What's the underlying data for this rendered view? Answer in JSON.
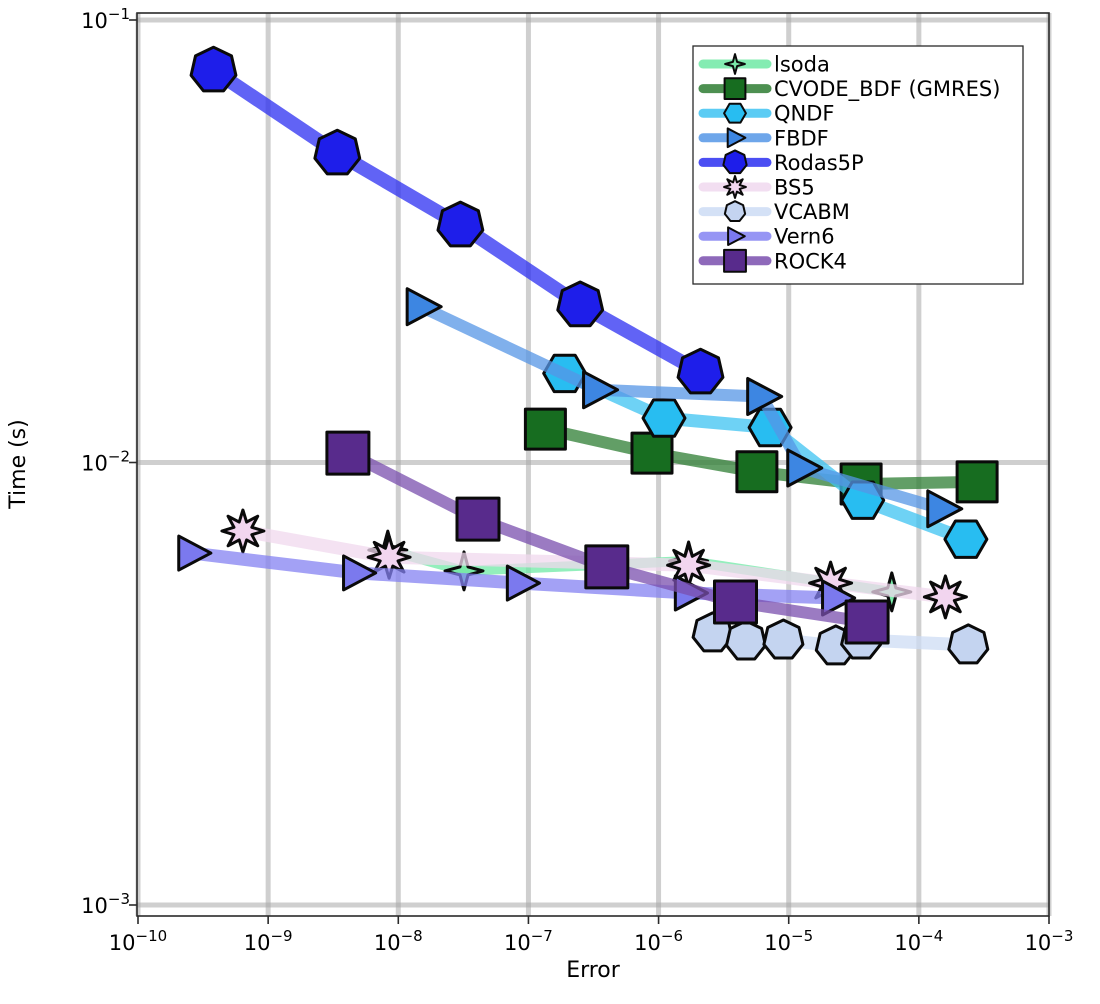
{
  "figure": {
    "background": "#ffffff"
  },
  "chart_data": {
    "type": "line",
    "title": "",
    "xlabel": "Error",
    "ylabel": "Time (s)",
    "x_scale": "log",
    "y_scale": "log",
    "xlim": [
      1e-10,
      0.001
    ],
    "ylim": [
      0.001,
      0.1
    ],
    "x_tick_exponents": [
      -10,
      -9,
      -8,
      -7,
      -6,
      -5,
      -4,
      -3
    ],
    "y_tick_exponents": [
      -1,
      -2,
      -3
    ],
    "grid": true,
    "grid_color": "#a8a8a8",
    "frame_color": "#2a2a2a",
    "legend_position": "top-right",
    "series": [
      {
        "name": "lsoda",
        "marker": "star4",
        "color": "#79e9a8",
        "line_color": "#6fe9a5",
        "line_width": 10,
        "marker_size": 19,
        "points": [
          [
            8.3e-09,
            0.00634
          ],
          [
            3.2e-08,
            0.00569
          ],
          [
            1.7e-06,
            0.00599
          ],
          [
            6.2e-05,
            0.0051
          ]
        ]
      },
      {
        "name": "CVODE_BDF (GMRES)",
        "marker": "square",
        "color": "#176d20",
        "line_color": "#2e7d33",
        "line_width": 12,
        "marker_size": 20,
        "points": [
          [
            1.35e-07,
            0.0119
          ],
          [
            8.9e-07,
            0.0105
          ],
          [
            5.7e-06,
            0.00953
          ],
          [
            3.6e-05,
            0.00894
          ],
          [
            0.00028,
            0.00904
          ]
        ]
      },
      {
        "name": "QNDF",
        "marker": "hexagon",
        "color": "#28bdf1",
        "line_color": "#3ec3f2",
        "line_width": 13,
        "marker_size": 21,
        "points": [
          [
            1.9e-07,
            0.0159
          ],
          [
            1.1e-06,
            0.0126
          ],
          [
            7.2e-06,
            0.012
          ],
          [
            3.7e-05,
            0.00822
          ],
          [
            0.00023,
            0.00671
          ]
        ]
      },
      {
        "name": "FBDF",
        "marker": "rtriangle",
        "color": "#3d86e2",
        "line_color": "#5596e6",
        "line_width": 12,
        "marker_size": 18,
        "points": [
          [
            1.5e-08,
            0.0225
          ],
          [
            3.4e-07,
            0.0146
          ],
          [
            6.2e-06,
            0.0141
          ],
          [
            1.26e-05,
            0.00972
          ],
          [
            0.00015,
            0.00786
          ]
        ]
      },
      {
        "name": "Rodas5P",
        "marker": "heptagon",
        "color": "#1e1eea",
        "line_color": "#2c2ff1",
        "line_width": 14,
        "marker_size": 23,
        "points": [
          [
            3.8e-10,
            0.077
          ],
          [
            3.4e-09,
            0.05
          ],
          [
            3e-08,
            0.0344
          ],
          [
            2.5e-07,
            0.0227
          ],
          [
            2.1e-06,
            0.016
          ]
        ]
      },
      {
        "name": "BS5",
        "marker": "star8",
        "color": "#f2d5ef",
        "line_color": "#f0d8ee",
        "line_width": 13,
        "marker_size": 21,
        "points": [
          [
            6.4e-10,
            0.007
          ],
          [
            8.5e-09,
            0.00611
          ],
          [
            1.7e-06,
            0.00586
          ],
          [
            2.1e-05,
            0.00534
          ],
          [
            0.00016,
            0.00497
          ]
        ]
      },
      {
        "name": "VCABM",
        "marker": "heptagon",
        "color": "#c4d4f0",
        "line_color": "#cddcf4",
        "line_width": 13,
        "marker_size": 20,
        "points": [
          [
            2.6e-06,
            0.00412
          ],
          [
            4.7e-06,
            0.00395
          ],
          [
            9.1e-06,
            0.00397
          ],
          [
            2.3e-05,
            0.00385
          ],
          [
            3.6e-05,
            0.00397
          ],
          [
            0.00024,
            0.00387
          ]
        ]
      },
      {
        "name": "Vern6",
        "marker": "rtriangle",
        "color": "#7b79ee",
        "line_color": "#8482f2",
        "line_width": 13,
        "marker_size": 17,
        "points": [
          [
            2.6e-10,
            0.00624
          ],
          [
            4.8e-09,
            0.00563
          ],
          [
            8.7e-08,
            0.00534
          ],
          [
            1.7e-06,
            0.00507
          ],
          [
            2.3e-05,
            0.00494
          ]
        ]
      },
      {
        "name": "ROCK4",
        "marker": "square",
        "color": "#582b8c",
        "line_color": "#7a4fae",
        "line_width": 12,
        "marker_size": 21,
        "points": [
          [
            4.1e-09,
            0.0105
          ],
          [
            4.1e-08,
            0.00745
          ],
          [
            4e-07,
            0.00581
          ],
          [
            3.9e-06,
            0.00484
          ],
          [
            4e-05,
            0.00436
          ]
        ]
      }
    ]
  }
}
